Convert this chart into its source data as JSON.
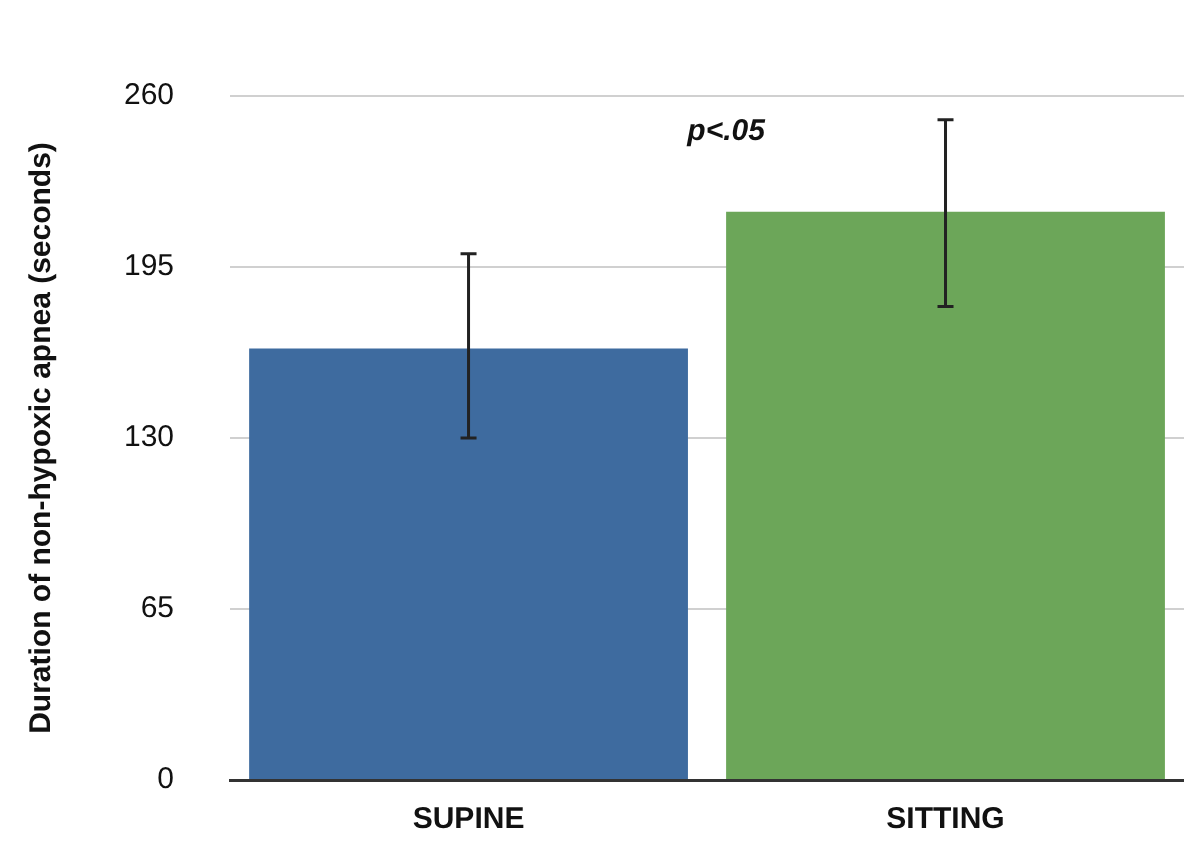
{
  "chart_data": {
    "type": "bar",
    "ylabel": "Duration of non-hypoxic apnea (seconds)",
    "categories": [
      "SUPINE",
      "SITTING"
    ],
    "values": [
      164,
      216
    ],
    "errors": [
      [
        130,
        200
      ],
      [
        180,
        251
      ]
    ],
    "colors": [
      "#3e6b9f",
      "#6ca659"
    ],
    "ylim": [
      0,
      260
    ],
    "yticks": [
      0,
      65,
      130,
      195,
      260
    ],
    "grid": "y",
    "legend": false,
    "annotations": [
      "p<.05"
    ]
  }
}
